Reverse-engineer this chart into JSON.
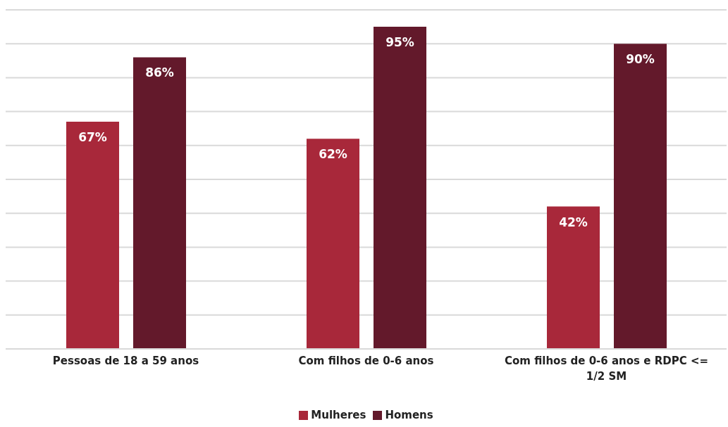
{
  "chart_data": {
    "type": "bar",
    "categories": [
      "Pessoas de 18 a 59 anos",
      "Com filhos de 0-6 anos",
      "Com filhos de 0-6 anos e RDPC <= 1/2 SM"
    ],
    "series": [
      {
        "name": "Mulheres",
        "color": "#a8283a",
        "values": [
          67,
          62,
          42
        ],
        "value_labels": [
          "67%",
          "62%",
          "42%"
        ]
      },
      {
        "name": "Homens",
        "color": "#63192b",
        "values": [
          86,
          95,
          90
        ],
        "value_labels": [
          "86%",
          "95%",
          "90%"
        ]
      }
    ],
    "ylim": [
      0,
      100
    ],
    "yticks": [
      {
        "value": 0,
        "label": null
      },
      {
        "value": 10,
        "label": null
      },
      {
        "value": 20,
        "label": null
      },
      {
        "value": 30,
        "label": null
      },
      {
        "value": 40,
        "label": null
      },
      {
        "value": 50,
        "label": null
      },
      {
        "value": 60,
        "label": null
      },
      {
        "value": 70,
        "label": null
      },
      {
        "value": 80,
        "label": null
      },
      {
        "value": 90,
        "label": null
      },
      {
        "value": 100,
        "label": null
      }
    ],
    "grid": "y",
    "tick_labels": "x",
    "legend": "bottom"
  }
}
